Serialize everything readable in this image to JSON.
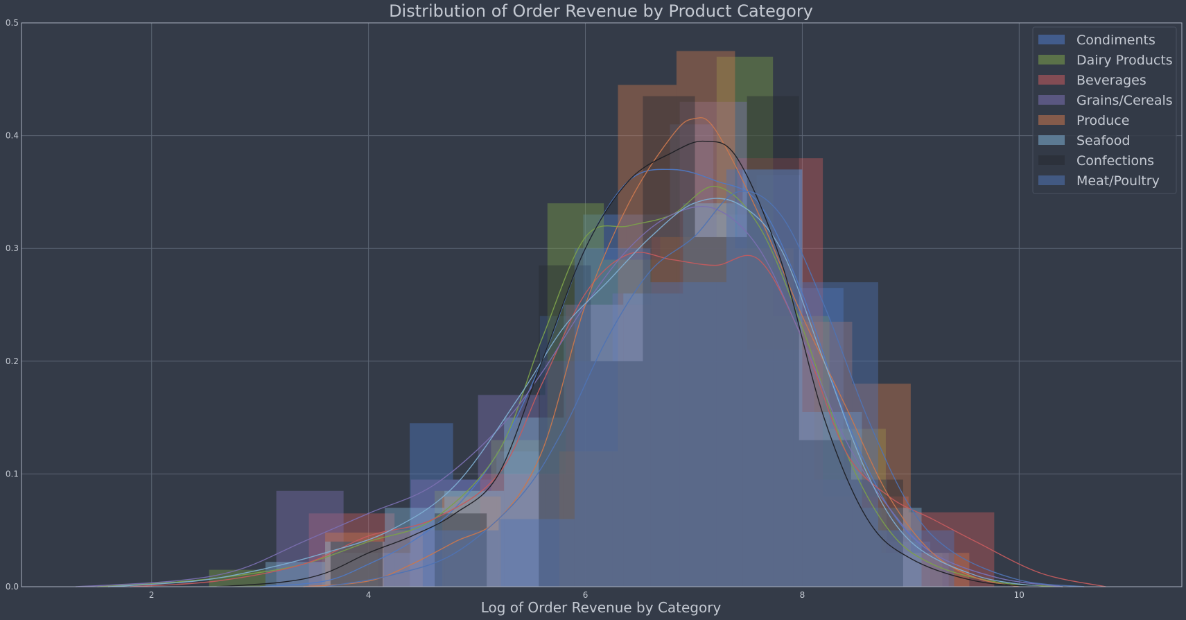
{
  "chart_data": {
    "type": "histogram-kde",
    "title": "Distribution of Order Revenue by Product Category",
    "xlabel": "Log of Order Revenue by Category",
    "ylabel": "",
    "xlim": [
      0.8,
      11.5
    ],
    "ylim": [
      0,
      0.5
    ],
    "xticks": [
      2,
      4,
      6,
      8,
      10
    ],
    "yticks": [
      0.0,
      0.1,
      0.2,
      0.3,
      0.4,
      0.5
    ],
    "grid": true,
    "legend_position": "top-right",
    "background": "#343b48",
    "series": [
      {
        "name": "Condiments",
        "color": "#4f79c4",
        "bins": [
          {
            "x0": 4.38,
            "x1": 4.78,
            "density": 0.145
          },
          {
            "x0": 4.78,
            "x1": 5.18,
            "density": 0.095
          },
          {
            "x0": 5.18,
            "x1": 5.58,
            "density": 0.12
          },
          {
            "x0": 5.58,
            "x1": 5.98,
            "density": 0.24
          },
          {
            "x0": 5.98,
            "x1": 6.38,
            "density": 0.33
          },
          {
            "x0": 6.38,
            "x1": 6.78,
            "density": 0.33
          },
          {
            "x0": 6.78,
            "x1": 7.18,
            "density": 0.41
          },
          {
            "x0": 7.18,
            "x1": 7.58,
            "density": 0.33
          },
          {
            "x0": 7.58,
            "x1": 7.98,
            "density": 0.365
          },
          {
            "x0": 7.98,
            "x1": 8.38,
            "density": 0.265
          },
          {
            "x0": 8.38,
            "x1": 8.78,
            "density": 0.095
          },
          {
            "x0": 8.78,
            "x1": 9.18,
            "density": 0.04
          }
        ],
        "kde": [
          [
            3.0,
            0.0
          ],
          [
            3.6,
            0.005
          ],
          [
            4.0,
            0.02
          ],
          [
            4.4,
            0.04
          ],
          [
            4.8,
            0.07
          ],
          [
            5.2,
            0.12
          ],
          [
            5.6,
            0.2
          ],
          [
            6.0,
            0.3
          ],
          [
            6.4,
            0.36
          ],
          [
            6.8,
            0.37
          ],
          [
            7.2,
            0.36
          ],
          [
            7.6,
            0.34
          ],
          [
            8.0,
            0.26
          ],
          [
            8.4,
            0.15
          ],
          [
            8.8,
            0.07
          ],
          [
            9.2,
            0.03
          ],
          [
            9.8,
            0.008
          ],
          [
            10.4,
            0.0
          ]
        ]
      },
      {
        "name": "Dairy Products",
        "color": "#7ba04a",
        "bins": [
          {
            "x0": 2.53,
            "x1": 3.05,
            "density": 0.015
          },
          {
            "x0": 3.57,
            "x1": 4.09,
            "density": 0.03
          },
          {
            "x0": 4.61,
            "x1": 5.13,
            "density": 0.085
          },
          {
            "x0": 5.13,
            "x1": 5.65,
            "density": 0.13
          },
          {
            "x0": 5.65,
            "x1": 6.17,
            "density": 0.34
          },
          {
            "x0": 6.17,
            "x1": 6.69,
            "density": 0.29
          },
          {
            "x0": 6.69,
            "x1": 7.21,
            "density": 0.31
          },
          {
            "x0": 7.21,
            "x1": 7.73,
            "density": 0.47
          },
          {
            "x0": 7.73,
            "x1": 8.25,
            "density": 0.24
          },
          {
            "x0": 8.25,
            "x1": 8.77,
            "density": 0.14
          },
          {
            "x0": 8.77,
            "x1": 9.29,
            "density": 0.03
          }
        ],
        "kde": [
          [
            1.5,
            0.0
          ],
          [
            2.2,
            0.004
          ],
          [
            2.8,
            0.01
          ],
          [
            3.4,
            0.02
          ],
          [
            4.0,
            0.04
          ],
          [
            4.6,
            0.06
          ],
          [
            5.2,
            0.12
          ],
          [
            5.6,
            0.22
          ],
          [
            6.0,
            0.31
          ],
          [
            6.4,
            0.32
          ],
          [
            6.8,
            0.33
          ],
          [
            7.2,
            0.355
          ],
          [
            7.6,
            0.32
          ],
          [
            8.0,
            0.23
          ],
          [
            8.4,
            0.12
          ],
          [
            8.8,
            0.05
          ],
          [
            9.2,
            0.02
          ],
          [
            9.8,
            0.004
          ],
          [
            10.4,
            0.0
          ]
        ]
      },
      {
        "name": "Beverages",
        "color": "#c45b5e",
        "bins": [
          {
            "x0": 3.45,
            "x1": 4.24,
            "density": 0.065
          },
          {
            "x0": 4.24,
            "x1": 5.03,
            "density": 0.05
          },
          {
            "x0": 5.03,
            "x1": 5.82,
            "density": 0.1
          },
          {
            "x0": 5.82,
            "x1": 6.61,
            "density": 0.25
          },
          {
            "x0": 6.61,
            "x1": 7.4,
            "density": 0.31
          },
          {
            "x0": 7.4,
            "x1": 8.19,
            "density": 0.38
          },
          {
            "x0": 8.19,
            "x1": 8.98,
            "density": 0.08
          },
          {
            "x0": 8.98,
            "x1": 9.77,
            "density": 0.066
          }
        ],
        "kde": [
          [
            1.8,
            0.0
          ],
          [
            2.6,
            0.005
          ],
          [
            3.4,
            0.02
          ],
          [
            4.0,
            0.045
          ],
          [
            4.6,
            0.06
          ],
          [
            5.2,
            0.1
          ],
          [
            5.6,
            0.18
          ],
          [
            6.0,
            0.26
          ],
          [
            6.4,
            0.295
          ],
          [
            6.8,
            0.29
          ],
          [
            7.2,
            0.285
          ],
          [
            7.6,
            0.29
          ],
          [
            8.0,
            0.22
          ],
          [
            8.4,
            0.12
          ],
          [
            8.8,
            0.08
          ],
          [
            9.2,
            0.06
          ],
          [
            9.6,
            0.04
          ],
          [
            10.2,
            0.012
          ],
          [
            10.8,
            0.0
          ]
        ]
      },
      {
        "name": "Grains/Cereals",
        "color": "#7a6fb0",
        "bins": [
          {
            "x0": 3.15,
            "x1": 3.77,
            "density": 0.085
          },
          {
            "x0": 3.77,
            "x1": 4.39,
            "density": 0.03
          },
          {
            "x0": 4.39,
            "x1": 5.01,
            "density": 0.095
          },
          {
            "x0": 5.01,
            "x1": 5.63,
            "density": 0.17
          },
          {
            "x0": 5.63,
            "x1": 6.25,
            "density": 0.2
          },
          {
            "x0": 6.25,
            "x1": 6.87,
            "density": 0.26
          },
          {
            "x0": 6.87,
            "x1": 7.49,
            "density": 0.43
          },
          {
            "x0": 7.49,
            "x1": 8.11,
            "density": 0.21
          },
          {
            "x0": 8.11,
            "x1": 8.73,
            "density": 0.095
          },
          {
            "x0": 8.73,
            "x1": 9.35,
            "density": 0.03
          }
        ],
        "kde": [
          [
            1.3,
            0.0
          ],
          [
            2.2,
            0.005
          ],
          [
            2.8,
            0.015
          ],
          [
            3.4,
            0.04
          ],
          [
            4.0,
            0.065
          ],
          [
            4.6,
            0.09
          ],
          [
            5.2,
            0.14
          ],
          [
            5.6,
            0.19
          ],
          [
            6.0,
            0.25
          ],
          [
            6.4,
            0.3
          ],
          [
            6.8,
            0.33
          ],
          [
            7.2,
            0.335
          ],
          [
            7.6,
            0.3
          ],
          [
            8.0,
            0.22
          ],
          [
            8.4,
            0.13
          ],
          [
            8.8,
            0.07
          ],
          [
            9.2,
            0.03
          ],
          [
            9.8,
            0.008
          ],
          [
            10.4,
            0.0
          ]
        ]
      },
      {
        "name": "Produce",
        "color": "#c9774e",
        "bins": [
          {
            "x0": 3.6,
            "x1": 4.14,
            "density": 0.048
          },
          {
            "x0": 4.68,
            "x1": 5.22,
            "density": 0.08
          },
          {
            "x0": 5.76,
            "x1": 6.3,
            "density": 0.12
          },
          {
            "x0": 6.3,
            "x1": 6.84,
            "density": 0.445
          },
          {
            "x0": 6.84,
            "x1": 7.38,
            "density": 0.475
          },
          {
            "x0": 7.38,
            "x1": 7.92,
            "density": 0.3
          },
          {
            "x0": 7.92,
            "x1": 8.46,
            "density": 0.235
          },
          {
            "x0": 8.46,
            "x1": 9.0,
            "density": 0.18
          },
          {
            "x0": 9.0,
            "x1": 9.54,
            "density": 0.03
          }
        ],
        "kde": [
          [
            3.4,
            0.0
          ],
          [
            4.0,
            0.005
          ],
          [
            4.4,
            0.02
          ],
          [
            4.8,
            0.04
          ],
          [
            5.2,
            0.06
          ],
          [
            5.6,
            0.12
          ],
          [
            6.0,
            0.25
          ],
          [
            6.4,
            0.34
          ],
          [
            6.8,
            0.4
          ],
          [
            7.0,
            0.415
          ],
          [
            7.2,
            0.405
          ],
          [
            7.6,
            0.33
          ],
          [
            8.0,
            0.24
          ],
          [
            8.4,
            0.16
          ],
          [
            8.8,
            0.08
          ],
          [
            9.2,
            0.03
          ],
          [
            9.6,
            0.008
          ],
          [
            10.0,
            0.0
          ]
        ]
      },
      {
        "name": "Seafood",
        "color": "#7eaed2",
        "bins": [
          {
            "x0": 3.05,
            "x1": 3.6,
            "density": 0.022
          },
          {
            "x0": 3.6,
            "x1": 4.15,
            "density": 0.04
          },
          {
            "x0": 4.15,
            "x1": 4.7,
            "density": 0.07
          },
          {
            "x0": 4.7,
            "x1": 5.25,
            "density": 0.085
          },
          {
            "x0": 5.25,
            "x1": 5.8,
            "density": 0.15
          },
          {
            "x0": 5.8,
            "x1": 6.35,
            "density": 0.25
          },
          {
            "x0": 6.35,
            "x1": 6.9,
            "density": 0.26
          },
          {
            "x0": 6.9,
            "x1": 7.45,
            "density": 0.34
          },
          {
            "x0": 7.45,
            "x1": 8.0,
            "density": 0.37
          },
          {
            "x0": 8.0,
            "x1": 8.55,
            "density": 0.155
          },
          {
            "x0": 8.55,
            "x1": 9.1,
            "density": 0.07
          }
        ],
        "kde": [
          [
            1.6,
            0.0
          ],
          [
            2.4,
            0.005
          ],
          [
            3.0,
            0.015
          ],
          [
            3.6,
            0.03
          ],
          [
            4.2,
            0.05
          ],
          [
            4.8,
            0.09
          ],
          [
            5.4,
            0.17
          ],
          [
            5.8,
            0.23
          ],
          [
            6.2,
            0.27
          ],
          [
            6.6,
            0.31
          ],
          [
            7.0,
            0.34
          ],
          [
            7.4,
            0.34
          ],
          [
            7.8,
            0.3
          ],
          [
            8.2,
            0.2
          ],
          [
            8.6,
            0.1
          ],
          [
            9.0,
            0.04
          ],
          [
            9.6,
            0.01
          ],
          [
            10.2,
            0.0
          ]
        ]
      },
      {
        "name": "Confections",
        "color": "#272a31",
        "bins": [
          {
            "x0": 3.65,
            "x1": 4.13,
            "density": 0.04
          },
          {
            "x0": 4.61,
            "x1": 5.09,
            "density": 0.065
          },
          {
            "x0": 5.57,
            "x1": 6.05,
            "density": 0.285
          },
          {
            "x0": 6.05,
            "x1": 6.53,
            "density": 0.2
          },
          {
            "x0": 6.53,
            "x1": 7.01,
            "density": 0.435
          },
          {
            "x0": 7.01,
            "x1": 7.49,
            "density": 0.31
          },
          {
            "x0": 7.49,
            "x1": 7.97,
            "density": 0.435
          },
          {
            "x0": 7.97,
            "x1": 8.45,
            "density": 0.13
          },
          {
            "x0": 8.45,
            "x1": 8.93,
            "density": 0.095
          }
        ],
        "kde": [
          [
            2.6,
            0.0
          ],
          [
            3.2,
            0.004
          ],
          [
            3.6,
            0.012
          ],
          [
            4.0,
            0.03
          ],
          [
            4.4,
            0.045
          ],
          [
            4.8,
            0.065
          ],
          [
            5.2,
            0.1
          ],
          [
            5.6,
            0.2
          ],
          [
            6.0,
            0.3
          ],
          [
            6.4,
            0.36
          ],
          [
            6.8,
            0.385
          ],
          [
            7.1,
            0.395
          ],
          [
            7.4,
            0.38
          ],
          [
            7.8,
            0.29
          ],
          [
            8.2,
            0.15
          ],
          [
            8.6,
            0.06
          ],
          [
            9.0,
            0.025
          ],
          [
            9.6,
            0.005
          ],
          [
            10.2,
            0.0
          ]
        ]
      },
      {
        "name": "Meat/Poultry",
        "color": "#4f73b3",
        "bins": [
          {
            "x0": 4.5,
            "x1": 5.2,
            "density": 0.05
          },
          {
            "x0": 5.2,
            "x1": 5.9,
            "density": 0.06
          },
          {
            "x0": 5.9,
            "x1": 6.6,
            "density": 0.3
          },
          {
            "x0": 6.6,
            "x1": 7.3,
            "density": 0.27
          },
          {
            "x0": 7.3,
            "x1": 8.0,
            "density": 0.37
          },
          {
            "x0": 8.0,
            "x1": 8.7,
            "density": 0.27
          },
          {
            "x0": 8.7,
            "x1": 9.4,
            "density": 0.05
          }
        ],
        "kde": [
          [
            3.6,
            0.0
          ],
          [
            4.2,
            0.01
          ],
          [
            4.8,
            0.03
          ],
          [
            5.4,
            0.08
          ],
          [
            5.8,
            0.14
          ],
          [
            6.2,
            0.22
          ],
          [
            6.6,
            0.28
          ],
          [
            7.0,
            0.31
          ],
          [
            7.4,
            0.35
          ],
          [
            7.8,
            0.33
          ],
          [
            8.2,
            0.25
          ],
          [
            8.6,
            0.15
          ],
          [
            9.0,
            0.07
          ],
          [
            9.4,
            0.03
          ],
          [
            10.0,
            0.006
          ],
          [
            10.6,
            0.0
          ]
        ]
      }
    ]
  }
}
